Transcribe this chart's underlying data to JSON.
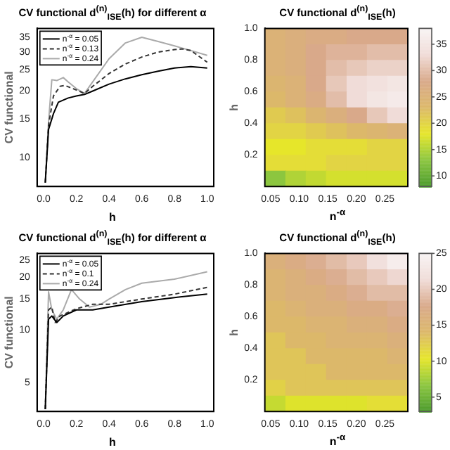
{
  "chart_data": [
    {
      "type": "line",
      "title": "CV functional d$^{(n)}$$_{ISE}$(h) for different α",
      "xlabel": "h",
      "ylabel": "CV functional",
      "log": "y",
      "legend": "top left",
      "xlim": [
        -0.04,
        1.04
      ],
      "ylim": [
        7.4,
        38.4
      ],
      "xticks": [
        {
          "value": 0,
          "label": "0.0"
        },
        {
          "value": 0.2,
          "label": "0.2"
        },
        {
          "value": 0.4,
          "label": "0.4"
        },
        {
          "value": 0.6,
          "label": "0.6"
        },
        {
          "value": 0.8,
          "label": "0.8"
        },
        {
          "value": 1,
          "label": "1.0"
        }
      ],
      "yticks": [
        10,
        15,
        20,
        25,
        30,
        35
      ],
      "series": [
        {
          "name": "n$^{-α}$ = 0.05",
          "color": "#000000",
          "line_style": "solid",
          "x": [
            0.01,
            0.03,
            0.06,
            0.09,
            0.12,
            0.15,
            0.2,
            0.25,
            0.3,
            0.4,
            0.5,
            0.6,
            0.7,
            0.8,
            0.9,
            1.0
          ],
          "values": [
            7.7,
            13.4,
            15.8,
            17.8,
            18.2,
            18.6,
            19,
            19.3,
            20,
            21.5,
            22.7,
            23.7,
            24.6,
            25.4,
            25.8,
            25.4
          ]
        },
        {
          "name": "n$^{-α}$ = 0.13",
          "color": "#333333",
          "line_style": "dashed",
          "x": [
            0.01,
            0.03,
            0.06,
            0.1,
            0.13,
            0.18,
            0.25,
            0.3,
            0.4,
            0.5,
            0.6,
            0.7,
            0.8,
            0.85,
            0.9,
            1.0
          ],
          "values": [
            7.7,
            14,
            19,
            21,
            21.2,
            20.5,
            19.5,
            21,
            24,
            26.5,
            28.5,
            30,
            30.8,
            31,
            30.5,
            27
          ]
        },
        {
          "name": "n$^{-α}$ = 0.24",
          "color": "#aaaaaa",
          "line_style": "solid",
          "x": [
            0.01,
            0.03,
            0.05,
            0.08,
            0.12,
            0.15,
            0.2,
            0.25,
            0.3,
            0.4,
            0.5,
            0.6,
            0.7,
            0.8,
            0.9,
            1.0
          ],
          "values": [
            7.7,
            14.5,
            22.5,
            22.3,
            23,
            22,
            20.5,
            19.5,
            22,
            28,
            33,
            35,
            33.5,
            32,
            30.5,
            29
          ]
        }
      ]
    },
    {
      "type": "heatmap",
      "title": "CV functional d$^{(n)}$$_{ISE}$(h)",
      "xlabel": "n$^{-α}$",
      "ylabel": "h",
      "xlim": [
        0.04,
        0.29
      ],
      "ylim": [
        0,
        1
      ],
      "xticks": [
        {
          "value": 0.05,
          "label": "0.05"
        },
        {
          "value": 0.1,
          "label": "0.10"
        },
        {
          "value": 0.15,
          "label": "0.15"
        },
        {
          "value": 0.2,
          "label": "0.20"
        },
        {
          "value": 0.25,
          "label": "0.25"
        }
      ],
      "yticks": [
        {
          "value": 0.2,
          "label": "0.2"
        },
        {
          "value": 0.4,
          "label": "0.4"
        },
        {
          "value": 0.6,
          "label": "0.6"
        },
        {
          "value": 0.8,
          "label": "0.8"
        },
        {
          "value": 1,
          "label": "1.0"
        }
      ],
      "x": [
        0.058,
        0.094,
        0.129,
        0.165,
        0.201,
        0.236,
        0.272
      ],
      "y": [
        0.95,
        0.85,
        0.75,
        0.65,
        0.55,
        0.45,
        0.35,
        0.25,
        0.15,
        0.05
      ],
      "clim": [
        8,
        38
      ],
      "cticks": [
        10,
        15,
        20,
        25,
        30,
        35
      ],
      "colors": [
        "#4a9a2a",
        "#8cc63f",
        "#e6e62a",
        "#dcb86a",
        "#d9a98a",
        "#f0dcd8",
        "#f8f4f4"
      ],
      "cells": [
        [
          25,
          26,
          27,
          27,
          28,
          28,
          28
        ],
        [
          25,
          26,
          28,
          29,
          29,
          30,
          30
        ],
        [
          25,
          26,
          28,
          30,
          31,
          32,
          32
        ],
        [
          24,
          25,
          28,
          31,
          33,
          34,
          35
        ],
        [
          23,
          25,
          27,
          30,
          33,
          35,
          36
        ],
        [
          21,
          22,
          24,
          26,
          28,
          31,
          33
        ],
        [
          20,
          20,
          21,
          22,
          23,
          24,
          25
        ],
        [
          18,
          18,
          19,
          19,
          19,
          20,
          20
        ],
        [
          19,
          19,
          19,
          20,
          20,
          20,
          20
        ],
        [
          13,
          15,
          16,
          17,
          17,
          17,
          17
        ]
      ]
    },
    {
      "type": "line",
      "title": "CV functional d$^{(n)}$$_{ISE}$(h) for different α",
      "xlabel": "h",
      "ylabel": "CV functional",
      "log": "y",
      "legend": "top left",
      "xlim": [
        -0.04,
        1.04
      ],
      "ylim": [
        3.4,
        27.4
      ],
      "xticks": [
        {
          "value": 0,
          "label": "0.0"
        },
        {
          "value": 0.2,
          "label": "0.2"
        },
        {
          "value": 0.4,
          "label": "0.4"
        },
        {
          "value": 0.6,
          "label": "0.6"
        },
        {
          "value": 0.8,
          "label": "0.8"
        },
        {
          "value": 1,
          "label": "1.0"
        }
      ],
      "yticks": [
        5,
        10,
        15,
        20,
        25
      ],
      "series": [
        {
          "name": "n$^{-α}$ = 0.05",
          "color": "#000000",
          "line_style": "solid",
          "x": [
            0.01,
            0.03,
            0.05,
            0.08,
            0.12,
            0.2,
            0.3,
            0.4,
            0.6,
            0.8,
            1.0
          ],
          "values": [
            3.5,
            11.5,
            12,
            11,
            12,
            13,
            13,
            13.5,
            14.5,
            15.3,
            16
          ]
        },
        {
          "name": "n$^{-α}$ = 0.1",
          "color": "#333333",
          "line_style": "dashed",
          "x": [
            0.01,
            0.03,
            0.05,
            0.07,
            0.1,
            0.2,
            0.3,
            0.4,
            0.6,
            0.8,
            1.0
          ],
          "values": [
            3.5,
            13,
            13.5,
            11,
            12,
            13.2,
            14,
            14,
            15,
            16,
            17.5
          ]
        },
        {
          "name": "n$^{-α}$ = 0.24",
          "color": "#aaaaaa",
          "line_style": "solid",
          "x": [
            0.01,
            0.03,
            0.05,
            0.08,
            0.12,
            0.17,
            0.22,
            0.28,
            0.35,
            0.4,
            0.5,
            0.6,
            0.8,
            1.0
          ],
          "values": [
            3.5,
            16.5,
            13,
            11.5,
            13,
            17,
            15,
            13.5,
            14,
            15,
            17,
            18.5,
            19.5,
            21.5
          ]
        }
      ]
    },
    {
      "type": "heatmap",
      "title": "CV functional d$^{(n)}$$_{ISE}$(h)",
      "xlabel": "n$^{-α}$",
      "ylabel": "h",
      "xlim": [
        0.04,
        0.29
      ],
      "ylim": [
        0,
        1
      ],
      "xticks": [
        {
          "value": 0.05,
          "label": "0.05"
        },
        {
          "value": 0.1,
          "label": "0.10"
        },
        {
          "value": 0.15,
          "label": "0.15"
        },
        {
          "value": 0.2,
          "label": "0.20"
        },
        {
          "value": 0.25,
          "label": "0.25"
        }
      ],
      "yticks": [
        {
          "value": 0.2,
          "label": "0.2"
        },
        {
          "value": 0.4,
          "label": "0.4"
        },
        {
          "value": 0.6,
          "label": "0.6"
        },
        {
          "value": 0.8,
          "label": "0.8"
        },
        {
          "value": 1,
          "label": "1.0"
        }
      ],
      "x": [
        0.058,
        0.094,
        0.129,
        0.165,
        0.201,
        0.236,
        0.272
      ],
      "y": [
        0.95,
        0.85,
        0.75,
        0.65,
        0.55,
        0.45,
        0.35,
        0.25,
        0.15,
        0.05
      ],
      "clim": [
        3,
        25
      ],
      "cticks": [
        5,
        10,
        15,
        20,
        25
      ],
      "colors": [
        "#4a9a2a",
        "#8cc63f",
        "#e6e62a",
        "#dcb86a",
        "#d9a98a",
        "#f0dcd8",
        "#f8f4f4"
      ],
      "cells": [
        [
          16,
          17,
          18,
          19,
          20,
          22,
          24
        ],
        [
          15,
          16,
          17,
          18,
          19,
          20,
          21
        ],
        [
          15,
          16,
          16,
          17,
          18,
          19,
          19
        ],
        [
          14,
          15,
          16,
          16,
          17,
          17,
          18
        ],
        [
          14,
          14,
          15,
          15,
          16,
          16,
          17
        ],
        [
          13,
          14,
          14,
          15,
          15,
          15,
          16
        ],
        [
          13,
          13,
          14,
          14,
          14,
          14,
          15
        ],
        [
          13,
          13,
          13,
          14,
          14,
          14,
          14
        ],
        [
          12,
          13,
          13,
          13,
          13,
          13,
          13
        ],
        [
          9,
          10,
          10,
          10,
          10,
          11,
          11
        ]
      ]
    }
  ]
}
